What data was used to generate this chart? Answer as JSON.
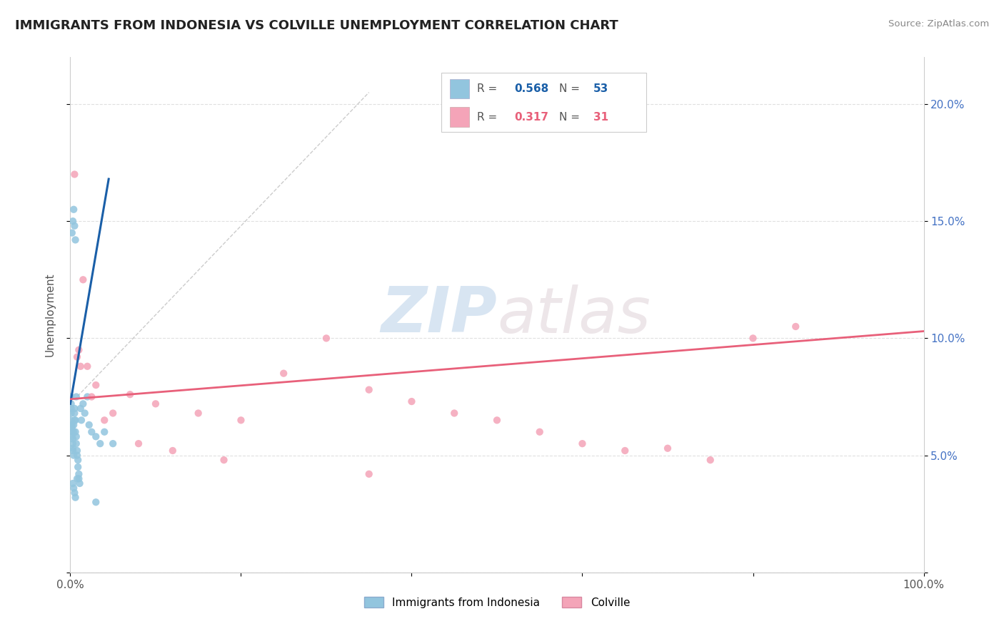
{
  "title": "IMMIGRANTS FROM INDONESIA VS COLVILLE UNEMPLOYMENT CORRELATION CHART",
  "source": "Source: ZipAtlas.com",
  "ylabel": "Unemployment",
  "xlim": [
    0,
    1.0
  ],
  "ylim": [
    0,
    0.22
  ],
  "xtick_vals": [
    0.0,
    0.2,
    0.4,
    0.6,
    0.8,
    1.0
  ],
  "xticklabels": [
    "0.0%",
    "",
    "",
    "",
    "",
    "100.0%"
  ],
  "ytick_vals": [
    0.0,
    0.05,
    0.1,
    0.15,
    0.2
  ],
  "yticklabels_right": [
    "",
    "5.0%",
    "10.0%",
    "15.0%",
    "20.0%"
  ],
  "r1": "0.568",
  "n1": "53",
  "r2": "0.317",
  "n2": "31",
  "series1_color": "#92c5de",
  "series2_color": "#f4a4b8",
  "trendline1_color": "#1a5fa8",
  "trendline2_color": "#e8607a",
  "right_axis_color": "#4472c4",
  "watermark_color": "#d0e4f0",
  "blue_dots_x": [
    0.0005,
    0.001,
    0.001,
    0.001,
    0.001,
    0.002,
    0.002,
    0.002,
    0.002,
    0.003,
    0.003,
    0.003,
    0.003,
    0.004,
    0.004,
    0.004,
    0.005,
    0.005,
    0.005,
    0.006,
    0.006,
    0.007,
    0.007,
    0.008,
    0.008,
    0.009,
    0.009,
    0.01,
    0.01,
    0.011,
    0.012,
    0.013,
    0.015,
    0.017,
    0.02,
    0.022,
    0.025,
    0.03,
    0.035,
    0.04,
    0.002,
    0.003,
    0.004,
    0.005,
    0.006,
    0.007,
    0.008,
    0.003,
    0.004,
    0.005,
    0.006,
    0.03,
    0.05
  ],
  "blue_dots_y": [
    0.075,
    0.072,
    0.07,
    0.068,
    0.065,
    0.063,
    0.062,
    0.06,
    0.058,
    0.057,
    0.055,
    0.053,
    0.052,
    0.05,
    0.06,
    0.063,
    0.065,
    0.07,
    0.068,
    0.065,
    0.06,
    0.058,
    0.055,
    0.052,
    0.05,
    0.048,
    0.045,
    0.042,
    0.04,
    0.038,
    0.07,
    0.065,
    0.072,
    0.068,
    0.075,
    0.063,
    0.06,
    0.058,
    0.055,
    0.06,
    0.145,
    0.15,
    0.155,
    0.148,
    0.142,
    0.075,
    0.04,
    0.038,
    0.036,
    0.034,
    0.032,
    0.03,
    0.055
  ],
  "pink_dots_x": [
    0.005,
    0.01,
    0.015,
    0.02,
    0.03,
    0.05,
    0.07,
    0.1,
    0.15,
    0.2,
    0.25,
    0.3,
    0.35,
    0.4,
    0.45,
    0.5,
    0.55,
    0.6,
    0.65,
    0.7,
    0.75,
    0.8,
    0.85,
    0.008,
    0.012,
    0.025,
    0.04,
    0.08,
    0.12,
    0.18,
    0.35
  ],
  "pink_dots_y": [
    0.17,
    0.095,
    0.125,
    0.088,
    0.08,
    0.068,
    0.076,
    0.072,
    0.068,
    0.065,
    0.085,
    0.1,
    0.078,
    0.073,
    0.068,
    0.065,
    0.06,
    0.055,
    0.052,
    0.053,
    0.048,
    0.1,
    0.105,
    0.092,
    0.088,
    0.075,
    0.065,
    0.055,
    0.052,
    0.048,
    0.042
  ],
  "trendline1_x": [
    0.0,
    0.045
  ],
  "trendline1_y": [
    0.072,
    0.168
  ],
  "trendline2_x": [
    0.0,
    1.0
  ],
  "trendline2_y": [
    0.074,
    0.103
  ],
  "dashed_line_x": [
    0.0,
    0.35
  ],
  "dashed_line_y": [
    0.072,
    0.205
  ]
}
